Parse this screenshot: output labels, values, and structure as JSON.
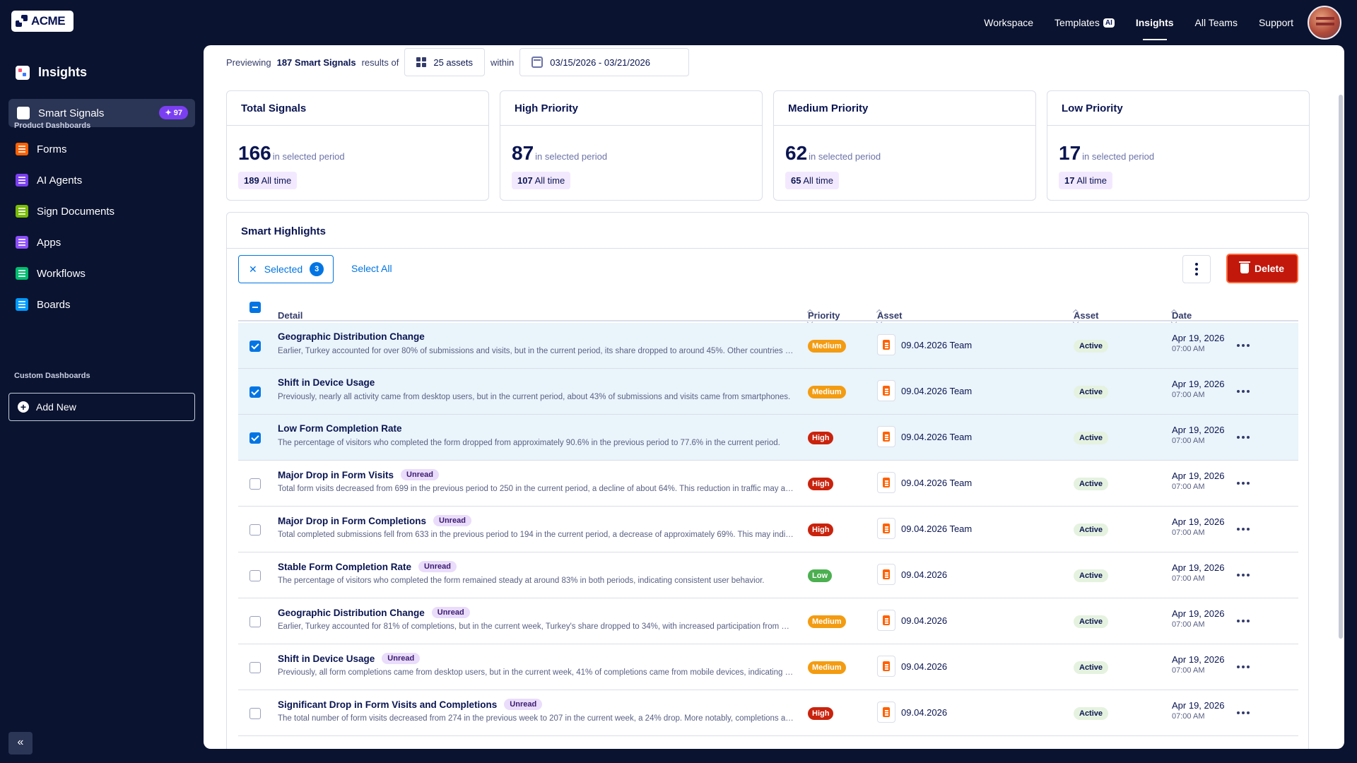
{
  "brand": {
    "name": "ACME"
  },
  "topnav": {
    "items": [
      {
        "label": "Workspace",
        "active": false
      },
      {
        "label": "Templates",
        "active": false,
        "chip": "AI"
      },
      {
        "label": "Insights",
        "active": true
      },
      {
        "label": "All Teams",
        "active": false
      },
      {
        "label": "Support",
        "active": false
      }
    ]
  },
  "sidebar": {
    "title": "Insights",
    "active_item": {
      "label": "Smart Signals",
      "badge": "97"
    },
    "product_section": "Product Dashboards",
    "product_items": [
      {
        "label": "Forms",
        "icon": "forms-icon",
        "color": "#ff6100"
      },
      {
        "label": "AI Agents",
        "icon": "ai-agents-icon",
        "color": "#7b3ff2"
      },
      {
        "label": "Sign Documents",
        "icon": "sign-documents-icon",
        "color": "#78bb07"
      },
      {
        "label": "Apps",
        "icon": "apps-icon",
        "color": "#8d4fff"
      },
      {
        "label": "Workflows",
        "icon": "workflows-icon",
        "color": "#01bd6f"
      },
      {
        "label": "Boards",
        "icon": "boards-icon",
        "color": "#0099ff"
      }
    ],
    "custom_section": "Custom Dashboards",
    "add_new": "Add New",
    "collapse": "«"
  },
  "preview": {
    "prefix": "Previewing",
    "count": "187 Smart Signals",
    "mid": "results of",
    "assets": "25 assets",
    "within": "within",
    "date_range": "03/15/2026 - 03/21/2026"
  },
  "cards": [
    {
      "title": "Total Signals",
      "value": "166",
      "sub": "in selected period",
      "all_value": "189",
      "all_label": "All time"
    },
    {
      "title": "High Priority",
      "value": "87",
      "sub": "in selected period",
      "all_value": "107",
      "all_label": "All time"
    },
    {
      "title": "Medium Priority",
      "value": "62",
      "sub": "in selected period",
      "all_value": "65",
      "all_label": "All time"
    },
    {
      "title": "Low Priority",
      "value": "17",
      "sub": "in selected period",
      "all_value": "17",
      "all_label": "All time"
    }
  ],
  "highlights": {
    "title": "Smart Highlights",
    "selected_label": "Selected",
    "selected_count": "3",
    "select_all": "Select All",
    "delete_label": "Delete",
    "columns": {
      "detail": "Detail",
      "priority": "Priority",
      "asset_name": "Asset Name",
      "asset_status": "Asset Status",
      "date": "Date"
    },
    "rows": [
      {
        "selected": true,
        "title": "Geographic Distribution Change",
        "unread": "",
        "desc": "Earlier, Turkey accounted for over 80% of submissions and visits, but in the current period, its share dropped to around 45%. Other countries saw increased participation.",
        "priority": "Medium",
        "asset": "09.04.2026 Team",
        "status": "Active",
        "date": "Apr 19, 2026",
        "time": "07:00 AM"
      },
      {
        "selected": true,
        "title": "Shift in Device Usage",
        "unread": "",
        "desc": "Previously, nearly all activity came from desktop users, but in the current period, about 43% of submissions and visits came from smartphones.",
        "priority": "Medium",
        "asset": "09.04.2026 Team",
        "status": "Active",
        "date": "Apr 19, 2026",
        "time": "07:00 AM"
      },
      {
        "selected": true,
        "title": "Low Form Completion Rate",
        "unread": "",
        "desc": "The percentage of visitors who completed the form dropped from approximately 90.6% in the previous period to 77.6% in the current period.",
        "priority": "High",
        "asset": "09.04.2026 Team",
        "status": "Active",
        "date": "Apr 19, 2026",
        "time": "07:00 AM"
      },
      {
        "selected": false,
        "title": "Major Drop in Form Visits",
        "unread": "Unread",
        "desc": "Total form visits decreased from 699 in the previous period to 250 in the current period, a decline of about 64%. This reduction in traffic may affect results.",
        "priority": "High",
        "asset": "09.04.2026 Team",
        "status": "Active",
        "date": "Apr 19, 2026",
        "time": "07:00 AM"
      },
      {
        "selected": false,
        "title": "Major Drop in Form Completions",
        "unread": "Unread",
        "desc": "Total completed submissions fell from 633 in the previous period to 194 in the current period, a decrease of approximately 69%. This may indicate lower engagement.",
        "priority": "High",
        "asset": "09.04.2026 Team",
        "status": "Active",
        "date": "Apr 19, 2026",
        "time": "07:00 AM"
      },
      {
        "selected": false,
        "title": "Stable Form Completion Rate",
        "unread": "Unread",
        "desc": "The percentage of visitors who completed the form remained steady at around 83% in both periods, indicating consistent user behavior.",
        "priority": "Low",
        "asset": "09.04.2026",
        "status": "Active",
        "date": "Apr 19, 2026",
        "time": "07:00 AM"
      },
      {
        "selected": false,
        "title": "Geographic Distribution Change",
        "unread": "Unread",
        "desc": "Earlier, Turkey accounted for 81% of completions, but in the current week, Turkey's share dropped to 34%, with increased participation from other regions.",
        "priority": "Medium",
        "asset": "09.04.2026",
        "status": "Active",
        "date": "Apr 19, 2026",
        "time": "07:00 AM"
      },
      {
        "selected": false,
        "title": "Shift in Device Usage",
        "unread": "Unread",
        "desc": "Previously, all form completions came from desktop users, but in the current week, 41% of completions came from mobile devices, indicating a shift.",
        "priority": "Medium",
        "asset": "09.04.2026",
        "status": "Active",
        "date": "Apr 19, 2026",
        "time": "07:00 AM"
      },
      {
        "selected": false,
        "title": "Significant Drop in Form Visits and Completions",
        "unread": "Unread",
        "desc": "The total number of form visits decreased from 274 in the previous week to 207 in the current week, a 24% drop. More notably, completions also declined.",
        "priority": "High",
        "asset": "09.04.2026",
        "status": "Active",
        "date": "Apr 19, 2026",
        "time": "07:00 AM"
      }
    ]
  }
}
